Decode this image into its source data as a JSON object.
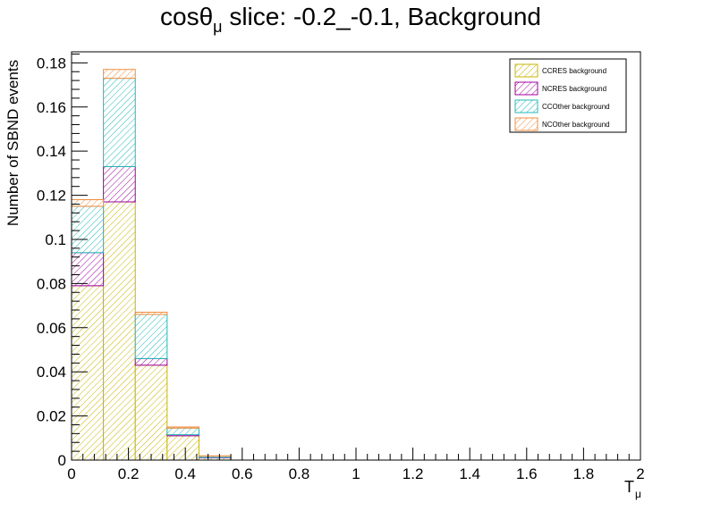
{
  "chart_data": {
    "type": "stacked-histogram",
    "title_main": "cosθ",
    "title_sub": "μ",
    "title_rest": " slice: -0.2_-0.1, Background",
    "xlabel_main": "T",
    "xlabel_sub": "μ",
    "ylabel": "Number of SBND events",
    "xlim": [
      0,
      2
    ],
    "ylim": [
      0,
      0.185
    ],
    "x_ticks": [
      0,
      0.2,
      0.4,
      0.6,
      0.8,
      1,
      1.2,
      1.4,
      1.6,
      1.8,
      2
    ],
    "x_tick_labels": [
      "0",
      "0.2",
      "0.4",
      "0.6",
      "0.8",
      "1",
      "1.2",
      "1.4",
      "1.6",
      "1.8",
      "2"
    ],
    "y_ticks": [
      0,
      0.02,
      0.04,
      0.06,
      0.08,
      0.1,
      0.12,
      0.14,
      0.16,
      0.18
    ],
    "y_tick_labels": [
      "0",
      "0.02",
      "0.04",
      "0.06",
      "0.08",
      "0.1",
      "0.12",
      "0.14",
      "0.16",
      "0.18"
    ],
    "bin_edges": [
      0,
      0.112,
      0.224,
      0.336,
      0.448,
      0.56
    ],
    "series": [
      {
        "name": "CCRES background",
        "color": "#c8b400",
        "values": [
          0.079,
          0.117,
          0.043,
          0.011,
          0.001
        ]
      },
      {
        "name": "NCRES background",
        "color": "#a000a0",
        "values": [
          0.015,
          0.016,
          0.003,
          0.0005,
          0.0002
        ]
      },
      {
        "name": "CCOther background",
        "color": "#20b8b8",
        "values": [
          0.021,
          0.04,
          0.02,
          0.003,
          0.0006
        ]
      },
      {
        "name": "NCOther background",
        "color": "#f08c3c",
        "values": [
          0.003,
          0.004,
          0.001,
          0.0005,
          0.0001
        ]
      }
    ],
    "legend_position": "top-right"
  }
}
